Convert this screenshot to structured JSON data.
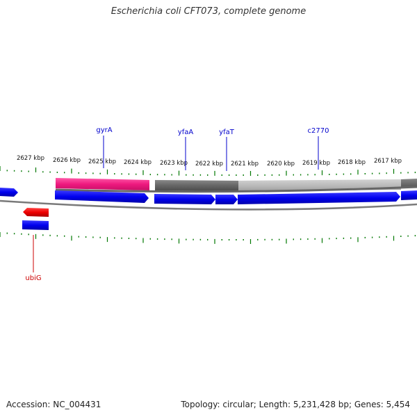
{
  "title": "Escherichia coli CFT073, complete genome",
  "footer": {
    "accession": "Accession: NC_004431",
    "summary": "Topology: circular; Length: 5,231,428 bp; Genes: 5,454"
  },
  "ruler": {
    "labels": [
      "2627 kbp",
      "2626 kbp",
      "2625 kbp",
      "2624 kbp",
      "2623 kbp",
      "2622 kbp",
      "2621 kbp",
      "2620 kbp",
      "2619 kbp",
      "2618 kbp",
      "2617 kbp"
    ]
  },
  "gene_labels": [
    {
      "name": "gyrA",
      "color": "#0000cc"
    },
    {
      "name": "yfaA",
      "color": "#0000cc"
    },
    {
      "name": "yfaT",
      "color": "#0000cc"
    },
    {
      "name": "c2770",
      "color": "#0000cc"
    },
    {
      "name": "ubiG",
      "color": "#cc0000"
    }
  ],
  "colors": {
    "forward_gene": "#0000ee",
    "reverse_gene": "#ee0000",
    "pink_feature": "#ee1a7f",
    "dark_grey_feature": "#666666",
    "light_grey_feature": "#bbbbbb",
    "ruler_ticks": "#007700"
  }
}
